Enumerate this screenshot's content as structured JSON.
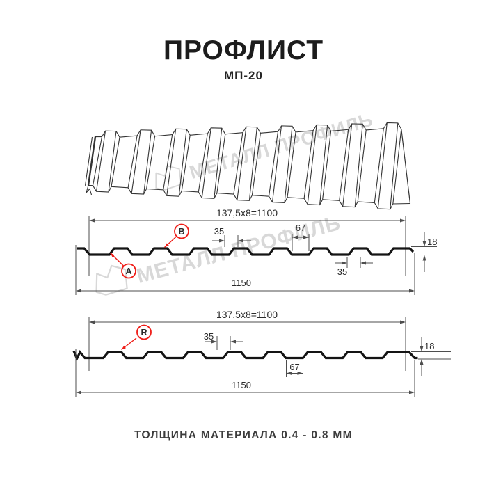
{
  "header": {
    "title": "ПРОФЛИСТ",
    "subtitle": "МП-20"
  },
  "watermark": {
    "text": "МЕТАЛЛ ПРОФИЛЬ",
    "color": "#d8d8d8"
  },
  "sections": [
    {
      "id": "ab",
      "working_width_label": "137,5x8=1100",
      "overall_width_label": "1150",
      "height_label": "18",
      "rib_width_label": "35",
      "valley_width_label": "67",
      "rib_base_label": "35",
      "point_labels": [
        "A",
        "B"
      ]
    },
    {
      "id": "r",
      "working_width_label": "137.5x8=1100",
      "overall_width_label": "1150",
      "height_label": "18",
      "rib_width_label": "35",
      "valley_width_label": "67",
      "point_labels": [
        "R"
      ]
    }
  ],
  "footer": {
    "note": "ТОЛЩИНА МАТЕРИАЛА 0.4 - 0.8 ММ"
  },
  "colors": {
    "accent_red": "#ef1d18",
    "profile_line": "#141414",
    "dimension_line": "#4d4d4d",
    "text": "#2b2b2b",
    "watermark": "#d8d8d8",
    "background": "#ffffff"
  }
}
